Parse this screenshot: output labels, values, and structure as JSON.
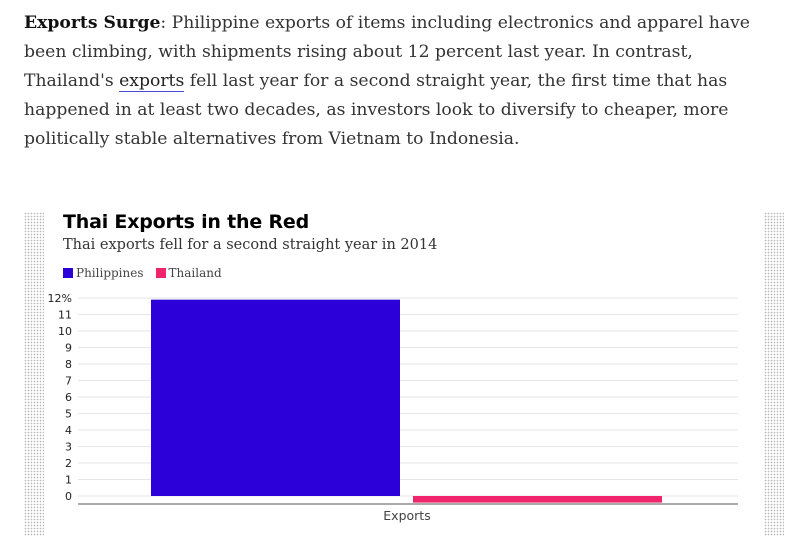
{
  "article": {
    "lead": "Exports Surge",
    "text_1": ": Philippine exports of items including electronics and apparel have been climbing, with shipments rising about 12 percent last year. In contrast, Thailand's ",
    "link": "exports",
    "text_2": " fell last year for a second straight year, the first time that has happened in at least two decades, as investors look to diversify to cheaper, more politically stable alternatives from Vietnam to Indonesia."
  },
  "chart_data": {
    "type": "bar",
    "title": "Thai Exports in the Red",
    "subtitle": "Thai exports fell for a second straight year in 2014",
    "categories": [
      "Exports"
    ],
    "series": [
      {
        "name": "Philippines",
        "color": "#2c00d9",
        "values": [
          11.9
        ]
      },
      {
        "name": "Thailand",
        "color": "#f0246b",
        "values": [
          -0.4
        ]
      }
    ],
    "ylim": [
      0,
      12
    ],
    "yticks": [
      "0",
      "1",
      "2",
      "3",
      "4",
      "5",
      "6",
      "7",
      "8",
      "9",
      "10",
      "11",
      "12%"
    ],
    "xlabel": "",
    "ylabel": "",
    "grid": true,
    "legend": "top-left"
  }
}
